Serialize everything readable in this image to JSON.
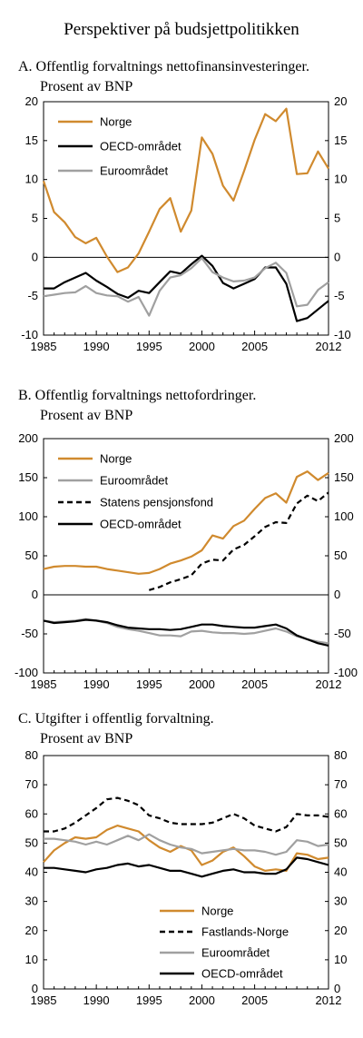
{
  "title": "Perspektiver på budsjettpolitikken",
  "colors": {
    "norge": "#d08a2e",
    "oecd": "#000000",
    "euro": "#a0a0a0",
    "dashed": "#000000"
  },
  "chart_data": [
    {
      "type": "line",
      "title": "A.  Offentlig forvaltnings nettofinansinvesteringer.",
      "subtitle": "Prosent av BNP",
      "ylim": [
        -10,
        20
      ],
      "yticks": [
        "20",
        "15",
        "10",
        "5",
        "0",
        "-5",
        "-10"
      ],
      "ytick_values": [
        20,
        15,
        10,
        5,
        0,
        -5,
        -10
      ],
      "xticks": [
        "1985",
        "1990",
        "1995",
        "2000",
        "2005",
        "2012"
      ],
      "xtick_values": [
        1985,
        1990,
        1995,
        2000,
        2005,
        2012
      ],
      "xlim": [
        1985,
        2012
      ],
      "legend": "top-left",
      "series": [
        {
          "name": "Norge",
          "style": "norge",
          "x_start": 1985,
          "values": [
            9.8,
            5.8,
            4.5,
            2.6,
            1.8,
            2.5,
            0.1,
            -1.9,
            -1.3,
            0.5,
            3.3,
            6.2,
            7.6,
            3.3,
            6.0,
            15.4,
            13.3,
            9.2,
            7.3,
            11.1,
            15.1,
            18.4,
            17.5,
            19.1,
            10.7,
            10.8,
            13.6,
            11.4
          ]
        },
        {
          "name": "OECD-området",
          "style": "oecd",
          "x_start": 1985,
          "values": [
            -4.0,
            -4.0,
            -3.2,
            -2.6,
            -2.0,
            -3.0,
            -3.8,
            -4.7,
            -5.2,
            -4.3,
            -4.6,
            -3.2,
            -1.8,
            -2.1,
            -0.9,
            0.2,
            -1.1,
            -3.3,
            -4.0,
            -3.4,
            -2.8,
            -1.3,
            -1.3,
            -3.4,
            -8.2,
            -7.8,
            -6.7,
            -5.6
          ]
        },
        {
          "name": "Euroområdet",
          "style": "euro",
          "x_start": 1985,
          "values": [
            -5.0,
            -4.8,
            -4.6,
            -4.5,
            -3.7,
            -4.6,
            -4.9,
            -5.0,
            -5.7,
            -5.1,
            -7.5,
            -4.3,
            -2.6,
            -2.3,
            -1.4,
            -0.1,
            -1.9,
            -2.6,
            -3.1,
            -3.0,
            -2.6,
            -1.4,
            -0.7,
            -2.0,
            -6.3,
            -6.1,
            -4.2,
            -3.2
          ]
        }
      ]
    },
    {
      "type": "line",
      "title": "B.  Offentlig forvaltnings nettofordringer.",
      "subtitle": "Prosent av BNP",
      "ylim": [
        -100,
        200
      ],
      "yticks": [
        "200",
        "150",
        "100",
        "50",
        "0",
        "-50",
        "-100"
      ],
      "ytick_values": [
        200,
        150,
        100,
        50,
        0,
        -50,
        -100
      ],
      "xticks": [
        "1985",
        "1990",
        "1995",
        "2000",
        "2005",
        "2012"
      ],
      "xtick_values": [
        1985,
        1990,
        1995,
        2000,
        2005,
        2012
      ],
      "xlim": [
        1985,
        2012
      ],
      "legend": "top-left",
      "series": [
        {
          "name": "Norge",
          "style": "norge",
          "x_start": 1985,
          "values": [
            33,
            36,
            37,
            37,
            36,
            36,
            33,
            31,
            29,
            27,
            28,
            33,
            40,
            44,
            49,
            57,
            76,
            72,
            88,
            95,
            110,
            124,
            130,
            118,
            151,
            158,
            147,
            156
          ]
        },
        {
          "name": "Euroområdet",
          "style": "euro",
          "x_start": 1985,
          "values": [
            -33,
            -35,
            -34,
            -33,
            -31,
            -33,
            -36,
            -41,
            -44,
            -46,
            -49,
            -52,
            -52,
            -53,
            -47,
            -46,
            -48,
            -49,
            -49,
            -50,
            -49,
            -46,
            -43,
            -47,
            -53,
            -57,
            -60,
            -62
          ]
        },
        {
          "name": "Statens pensjonsfond",
          "style": "dashed",
          "x_start": 1995,
          "values": [
            6,
            10,
            16,
            20,
            25,
            40,
            45,
            44,
            58,
            64,
            75,
            87,
            93,
            92,
            117,
            127,
            120,
            131
          ]
        },
        {
          "name": "OECD-området",
          "style": "oecd",
          "x_start": 1985,
          "values": [
            -33,
            -36,
            -35,
            -34,
            -32,
            -33,
            -35,
            -39,
            -42,
            -43,
            -44,
            -44,
            -45,
            -44,
            -41,
            -38,
            -38,
            -40,
            -41,
            -42,
            -42,
            -40,
            -38,
            -43,
            -52,
            -57,
            -62,
            -65
          ]
        }
      ]
    },
    {
      "type": "line",
      "title": "C.  Utgifter i offentlig forvaltning.",
      "subtitle": "Prosent av BNP",
      "ylim": [
        0,
        80
      ],
      "yticks": [
        "80",
        "70",
        "60",
        "50",
        "40",
        "30",
        "20",
        "10",
        "0"
      ],
      "ytick_values": [
        80,
        70,
        60,
        50,
        40,
        30,
        20,
        10,
        0
      ],
      "xticks": [
        "1985",
        "1990",
        "1995",
        "2000",
        "2005",
        "2012"
      ],
      "xtick_values": [
        1985,
        1990,
        1995,
        2000,
        2005,
        2012
      ],
      "xlim": [
        1985,
        2012
      ],
      "legend": "bottom-center",
      "series": [
        {
          "name": "Norge",
          "style": "norge",
          "x_start": 1985,
          "values": [
            43.5,
            47.5,
            50.0,
            52.0,
            51.5,
            52.0,
            54.5,
            56.0,
            55.0,
            54.0,
            51.0,
            48.5,
            47.0,
            49.0,
            47.5,
            42.5,
            44.0,
            47.0,
            48.5,
            45.5,
            42.0,
            40.5,
            41.0,
            40.5,
            46.5,
            46.0,
            44.5,
            45.0
          ]
        },
        {
          "name": "Fastlands-Norge",
          "style": "dashed",
          "x_start": 1985,
          "values": [
            54.0,
            54.0,
            55.0,
            57.0,
            59.5,
            62.0,
            65.0,
            65.5,
            64.5,
            63.0,
            59.5,
            58.5,
            57.0,
            56.5,
            56.5,
            56.5,
            57.0,
            58.5,
            60.0,
            58.5,
            56.0,
            55.0,
            54.0,
            55.5,
            60.0,
            59.5,
            59.5,
            59.0
          ]
        },
        {
          "name": "Euroområdet",
          "style": "euro",
          "x_start": 1985,
          "values": [
            51.5,
            51.5,
            51.0,
            50.5,
            49.5,
            50.5,
            49.5,
            51.0,
            52.5,
            51.0,
            53.0,
            51.0,
            49.5,
            48.5,
            48.0,
            46.5,
            47.0,
            47.5,
            48.0,
            47.5,
            47.5,
            47.0,
            46.0,
            47.0,
            51.0,
            50.5,
            49.0,
            49.5
          ]
        },
        {
          "name": "OECD-området",
          "style": "oecd",
          "x_start": 1985,
          "values": [
            41.5,
            41.5,
            41.0,
            40.5,
            40.0,
            41.0,
            41.5,
            42.5,
            43.0,
            42.0,
            42.5,
            41.5,
            40.5,
            40.5,
            39.5,
            38.5,
            39.5,
            40.5,
            41.0,
            40.0,
            40.0,
            39.5,
            39.5,
            41.0,
            45.0,
            44.5,
            43.5,
            42.5
          ]
        }
      ]
    }
  ]
}
